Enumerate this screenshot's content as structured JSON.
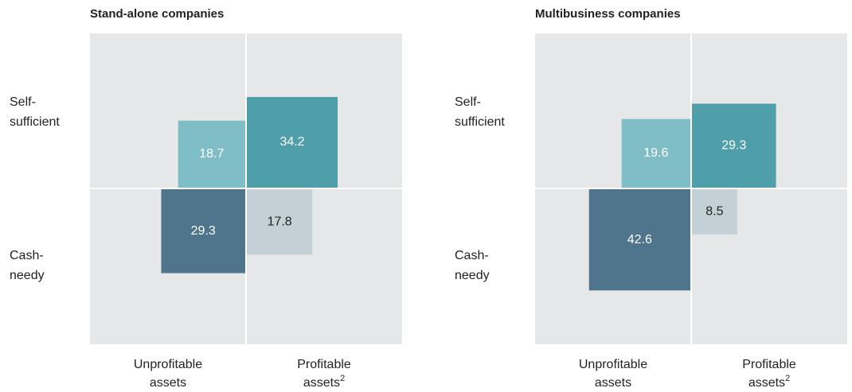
{
  "chart_data": [
    {
      "type": "quadrant",
      "title": "Stand-alone companies",
      "row_labels": [
        [
          "Self-",
          "sufficient"
        ],
        [
          "Cash-",
          "needy"
        ]
      ],
      "col_labels": [
        {
          "lines": [
            "Unprofitable",
            "assets"
          ]
        },
        {
          "lines": [
            "Profitable",
            "assets"
          ],
          "note": "2"
        }
      ],
      "values": [
        [
          18.7,
          34.2
        ],
        [
          29.3,
          17.8
        ]
      ],
      "colors": [
        [
          "#7fbec6",
          "#4f9faa"
        ],
        [
          "#4e758b",
          "#c3d0d6"
        ]
      ]
    },
    {
      "type": "quadrant",
      "title": "Multibusiness companies",
      "row_labels": [
        [
          "Self-",
          "sufficient"
        ],
        [
          "Cash-",
          "needy"
        ]
      ],
      "col_labels": [
        {
          "lines": [
            "Unprofitable",
            "assets"
          ]
        },
        {
          "lines": [
            "Profitable",
            "assets"
          ],
          "note": "2"
        }
      ],
      "values": [
        [
          19.6,
          29.3
        ],
        [
          42.6,
          8.5
        ]
      ],
      "colors": [
        [
          "#7fbec6",
          "#4f9faa"
        ],
        [
          "#4e758b",
          "#c3d0d6"
        ]
      ]
    }
  ]
}
